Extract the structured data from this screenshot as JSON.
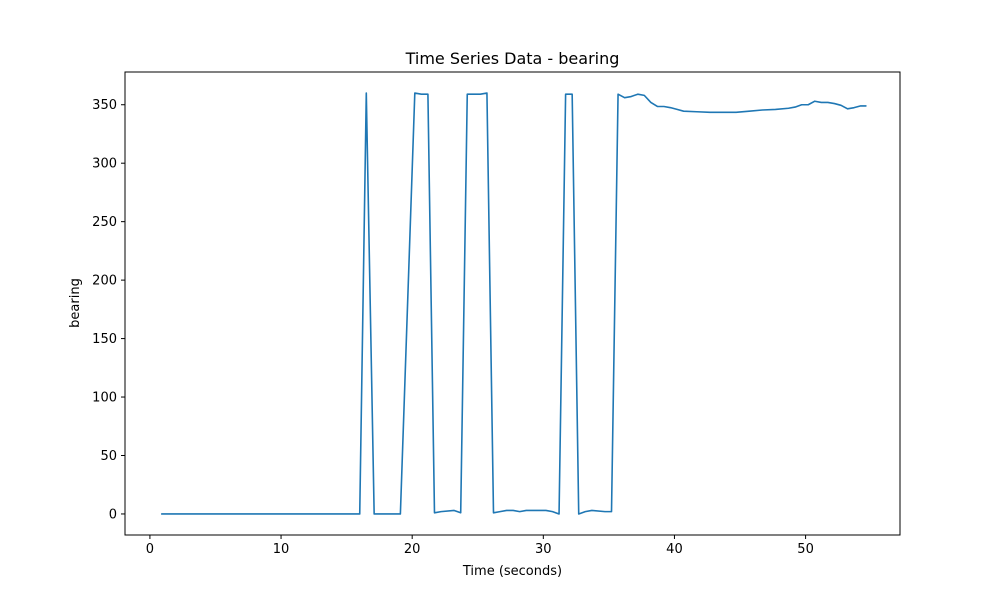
{
  "chart_data": {
    "type": "line",
    "title": "Time Series Data - bearing",
    "xlabel": "Time (seconds)",
    "ylabel": "bearing",
    "xlim": [
      -1.9,
      57.2
    ],
    "ylim": [
      -18,
      378
    ],
    "xticks": [
      0,
      10,
      20,
      30,
      40,
      50
    ],
    "yticks": [
      0,
      50,
      100,
      150,
      200,
      250,
      300,
      350
    ],
    "grid": false,
    "series": [
      {
        "color": "#1f77b4",
        "x": [
          0.9,
          16.0,
          16.5,
          17.1,
          19.1,
          20.2,
          20.7,
          21.2,
          21.7,
          22.2,
          23.2,
          23.7,
          24.2,
          24.7,
          25.2,
          25.7,
          26.2,
          26.7,
          27.2,
          27.7,
          28.2,
          28.7,
          29.2,
          29.7,
          30.2,
          30.7,
          31.2,
          31.7,
          32.2,
          32.7,
          33.2,
          33.7,
          34.7,
          35.2,
          35.7,
          36.2,
          36.7,
          37.2,
          37.7,
          38.2,
          38.7,
          39.2,
          39.7,
          40.2,
          40.7,
          41.7,
          42.7,
          43.7,
          44.7,
          45.7,
          46.7,
          47.7,
          48.7,
          49.2,
          49.7,
          50.2,
          50.7,
          51.2,
          51.7,
          52.2,
          52.7,
          53.2,
          53.7,
          54.2,
          54.6
        ],
        "y": [
          0,
          0,
          360,
          0,
          0,
          360,
          359,
          359,
          1,
          2,
          3,
          1,
          359,
          359,
          359,
          360,
          1,
          2,
          3,
          3,
          2,
          3,
          3,
          3,
          3,
          2,
          0,
          359,
          359,
          0,
          2,
          3,
          2,
          2,
          359,
          356,
          357,
          359,
          358,
          352,
          348.5,
          348.5,
          347.5,
          346,
          344.5,
          344,
          343.5,
          343.5,
          343.5,
          344.5,
          345.5,
          346,
          347,
          348,
          350,
          350,
          353,
          352,
          352,
          351,
          349.5,
          346.5,
          347.5,
          349,
          349
        ]
      }
    ]
  }
}
